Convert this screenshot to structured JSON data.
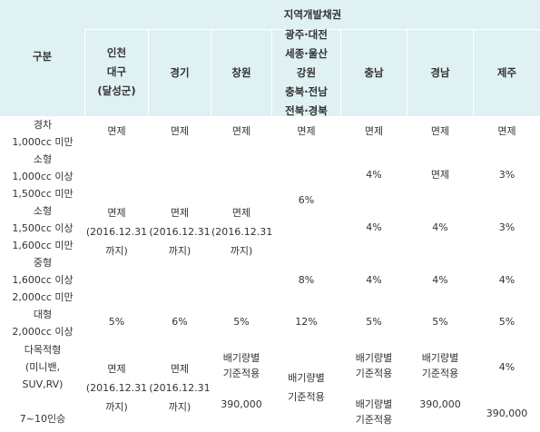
{
  "header": {
    "group": "지역개발채권",
    "category": "구분",
    "regions": [
      "인천\n대구\n(달성군)",
      "경기",
      "창원",
      "광주·대전\n세종·울산\n강원\n충북·전남\n전북·경북",
      "충남",
      "경남",
      "제주"
    ]
  },
  "rows": {
    "compact": {
      "label": "경차\n1,000cc 미만",
      "incheon": "면제",
      "gyeonggi": "면제",
      "changwon": "면제",
      "gwangju": "면제",
      "chungnam": "면제",
      "gyeongnam": "면제",
      "jeju": "면제"
    },
    "small": {
      "label": "소형\n1,000cc 이상\n1,500cc 미만",
      "chungnam": "4%",
      "gyeongnam": "면제",
      "jeju": "3%"
    },
    "small_mid": {
      "label": "소형\n1,500cc 이상\n1,600cc 미만",
      "chungnam": "4%",
      "gyeongnam": "4%",
      "jeju": "3%"
    },
    "span_small": {
      "incheon": "면제\n(2016.12.31\n까지)",
      "gyeonggi": "면제\n(2016.12.31\n까지)",
      "changwon": "면제\n(2016.12.31\n까지)",
      "gwangju": "6%"
    },
    "medium": {
      "label": "중형\n1,600cc 이상\n2,000cc 미만",
      "gwangju": "8%",
      "chungnam": "4%",
      "gyeongnam": "4%",
      "jeju": "4%"
    },
    "large": {
      "label": "대형\n2,000cc 이상",
      "incheon": "5%",
      "gyeonggi": "6%",
      "changwon": "5%",
      "gwangju": "12%",
      "chungnam": "5%",
      "gyeongnam": "5%",
      "jeju": "5%"
    },
    "multi": {
      "label": "다목적형\n(미니밴,\nSUV,RV)\n\n7~10인승",
      "incheon": "면제\n(2016.12.31\n까지)",
      "gyeonggi": "면제\n(2016.12.31\n까지)",
      "changwon": "배기량별\n기준적용\n\n390,000",
      "gwangju": "배기량별\n기준적용",
      "chungnam": "배기량별\n기준적용\n\n배기량별\n기준적용",
      "gyeongnam": "배기량별\n기준적용\n\n390,000",
      "jeju": "4%\n\n\n390,000"
    }
  }
}
